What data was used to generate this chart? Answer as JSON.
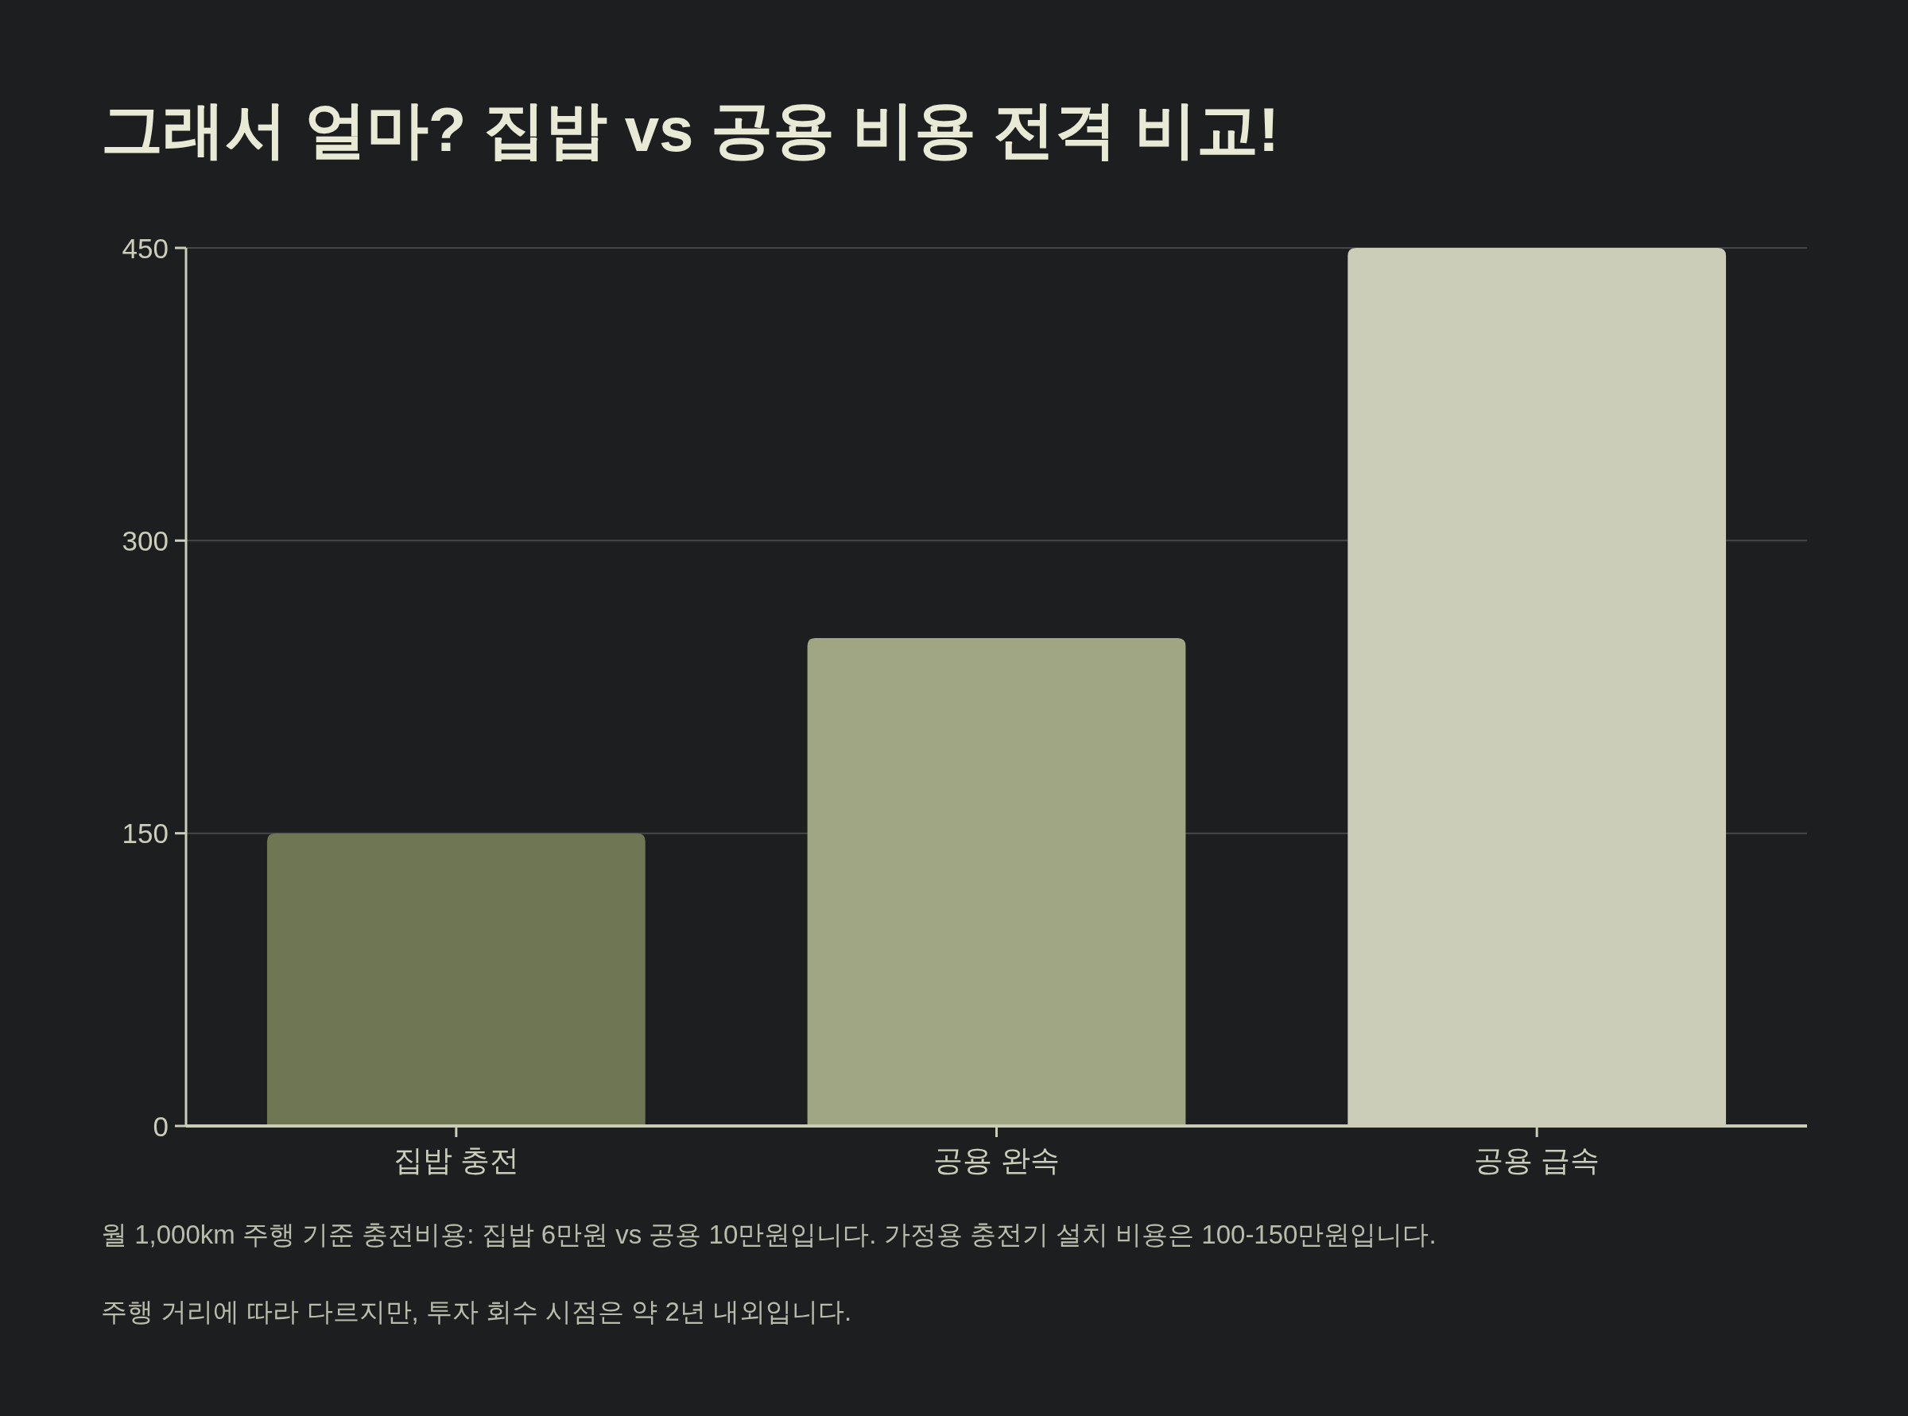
{
  "chart_data": {
    "type": "bar",
    "title": "그래서 얼마? 집밥 vs 공용 비용 전격 비교!",
    "categories": [
      "집밥 충전",
      "공용 완속",
      "공용 급속"
    ],
    "values": [
      150,
      250,
      450
    ],
    "colors": [
      "#6f7653",
      "#a0a683",
      "#cbcdb9"
    ],
    "ylim": [
      0,
      450
    ],
    "yticks": [
      0,
      150,
      300,
      450
    ],
    "grid": "y",
    "annotations": [
      "월 1,000km 주행 기준 충전비용: 집밥 6만원 vs 공용 10만원입니다. 가정용 충전기 설치 비용은 100-150만원입니다.",
      "주행 거리에 따라 다르지만, 투자 회수 시점은 약 2년 내외입니다."
    ]
  }
}
